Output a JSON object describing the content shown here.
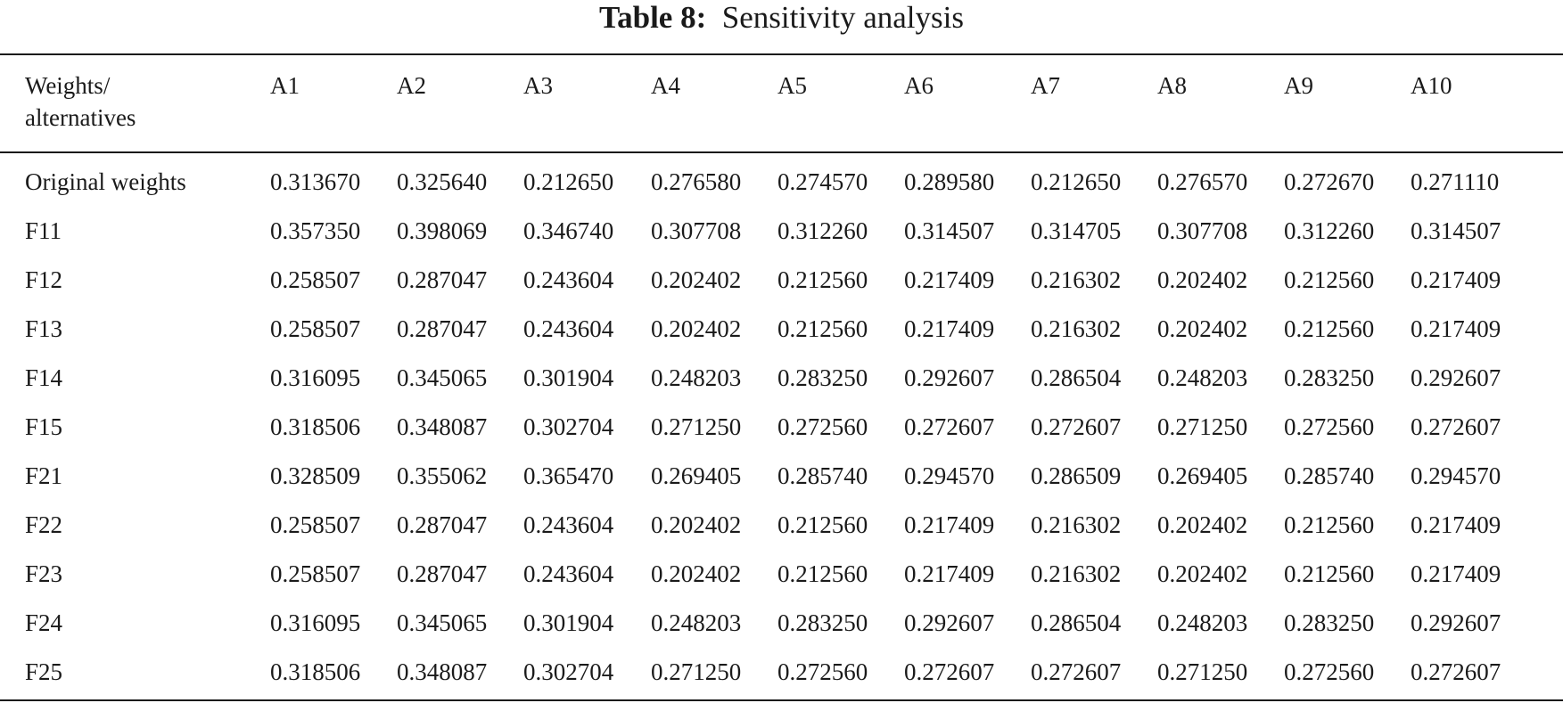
{
  "caption": {
    "label": "Table 8:",
    "title": "Sensitivity analysis"
  },
  "table": {
    "header_first_line1": "Weights/",
    "header_first_line2": "alternatives",
    "columns": [
      "A1",
      "A2",
      "A3",
      "A4",
      "A5",
      "A6",
      "A7",
      "A8",
      "A9",
      "A10"
    ],
    "rows": [
      {
        "label": "Original weights",
        "values": [
          "0.313670",
          "0.325640",
          "0.212650",
          "0.276580",
          "0.274570",
          "0.289580",
          "0.212650",
          "0.276570",
          "0.272670",
          "0.271110"
        ]
      },
      {
        "label": "F11",
        "values": [
          "0.357350",
          "0.398069",
          "0.346740",
          "0.307708",
          "0.312260",
          "0.314507",
          "0.314705",
          "0.307708",
          "0.312260",
          "0.314507"
        ]
      },
      {
        "label": "F12",
        "values": [
          "0.258507",
          "0.287047",
          "0.243604",
          "0.202402",
          "0.212560",
          "0.217409",
          "0.216302",
          "0.202402",
          "0.212560",
          "0.217409"
        ]
      },
      {
        "label": "F13",
        "values": [
          "0.258507",
          "0.287047",
          "0.243604",
          "0.202402",
          "0.212560",
          "0.217409",
          "0.216302",
          "0.202402",
          "0.212560",
          "0.217409"
        ]
      },
      {
        "label": "F14",
        "values": [
          "0.316095",
          "0.345065",
          "0.301904",
          "0.248203",
          "0.283250",
          "0.292607",
          "0.286504",
          "0.248203",
          "0.283250",
          "0.292607"
        ]
      },
      {
        "label": "F15",
        "values": [
          "0.318506",
          "0.348087",
          "0.302704",
          "0.271250",
          "0.272560",
          "0.272607",
          "0.272607",
          "0.271250",
          "0.272560",
          "0.272607"
        ]
      },
      {
        "label": "F21",
        "values": [
          "0.328509",
          "0.355062",
          "0.365470",
          "0.269405",
          "0.285740",
          "0.294570",
          "0.286509",
          "0.269405",
          "0.285740",
          "0.294570"
        ]
      },
      {
        "label": "F22",
        "values": [
          "0.258507",
          "0.287047",
          "0.243604",
          "0.202402",
          "0.212560",
          "0.217409",
          "0.216302",
          "0.202402",
          "0.212560",
          "0.217409"
        ]
      },
      {
        "label": "F23",
        "values": [
          "0.258507",
          "0.287047",
          "0.243604",
          "0.202402",
          "0.212560",
          "0.217409",
          "0.216302",
          "0.202402",
          "0.212560",
          "0.217409"
        ]
      },
      {
        "label": "F24",
        "values": [
          "0.316095",
          "0.345065",
          "0.301904",
          "0.248203",
          "0.283250",
          "0.292607",
          "0.286504",
          "0.248203",
          "0.283250",
          "0.292607"
        ]
      },
      {
        "label": "F25",
        "values": [
          "0.318506",
          "0.348087",
          "0.302704",
          "0.271250",
          "0.272560",
          "0.272607",
          "0.272607",
          "0.271250",
          "0.272560",
          "0.272607"
        ]
      }
    ]
  }
}
